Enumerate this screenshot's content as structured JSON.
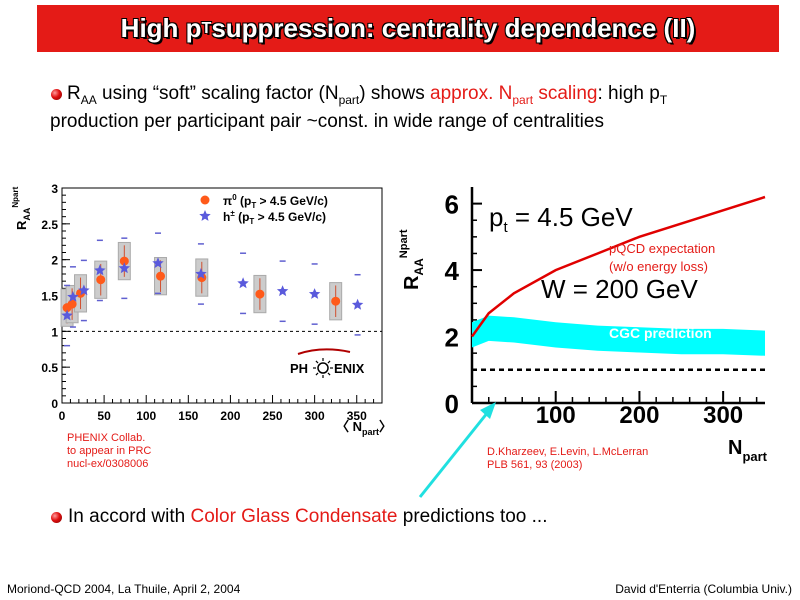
{
  "header": {
    "title_pre": "High p",
    "title_sub": "T",
    "title_post": " suppression: centrality dependence (II)"
  },
  "bullets": {
    "b1_r": "R",
    "b1_aa": "AA",
    "b1_a": " using “soft” scaling factor (N",
    "b1_part": "part",
    "b1_b": ") shows ",
    "b1_hl1": "approx. N",
    "b1_hl_part": "part",
    "b1_hl2": " scaling",
    "b1_c": ": high p",
    "b1_t": "T",
    "b1_line2": "production per participant pair ~const. in wide range of centralities",
    "b2_a": "In accord with ",
    "b2_hl": "Color Glass Condensate",
    "b2_b": " predictions too ..."
  },
  "left_notes": [
    "PHENIX Collab.",
    "to appear in PRC",
    "nucl-ex/0308006"
  ],
  "right_notes": [
    "D.Kharzeev, E.Levin, L.McLerran",
    "PLB 561, 93 (2003)"
  ],
  "logo": {
    "text_left": "PH",
    "text_right": "ENIX",
    "icon": "sun-icon"
  },
  "footer": {
    "left": "Moriond-QCD 2004, La Thuile, April 2, 2004",
    "right": "David d'Enterria (Columbia Univ.)"
  },
  "colors": {
    "title_bg": "#e41b17",
    "highlight": "#e41b17",
    "pi0": "#ff5a1a",
    "hpm": "#5a5adc",
    "cgc_band": "#00ffff",
    "pqcd": "#e00000",
    "arrow": "#20e0e0"
  },
  "chart_data": [
    {
      "type": "scatter",
      "ylabel_main": "R",
      "ylabel_sub": "AA",
      "ylabel_sup": "Npart",
      "xlabel_main": "〈 N",
      "xlabel_sub": "part",
      "xlabel_end": "〉",
      "xlim": [
        0,
        380
      ],
      "ylim": [
        0,
        3
      ],
      "xticks": [
        0,
        50,
        100,
        150,
        200,
        250,
        300,
        350
      ],
      "yticks": [
        0,
        0.5,
        1,
        1.5,
        2,
        2.5,
        3
      ],
      "ytick_labels": [
        "0",
        "0.5",
        "1",
        "1.5",
        "2",
        "2.5",
        "3"
      ],
      "reference_line": 1,
      "legend": [
        {
          "sym": "π",
          "sup": "0",
          "text": " (p",
          "sub": "T",
          "end": " > 4.5 GeV/c)"
        },
        {
          "sym": "h",
          "sup": "±",
          "text": " (p",
          "sub": "T",
          "end": " > 4.5 GeV/c)"
        }
      ],
      "series": [
        {
          "name": "pi0",
          "x": [
            6,
            12,
            22,
            46,
            74,
            117,
            166,
            235,
            325
          ],
          "y": [
            1.33,
            1.38,
            1.53,
            1.72,
            1.98,
            1.77,
            1.75,
            1.52,
            1.42
          ]
        },
        {
          "name": "hpm",
          "x": [
            6,
            13,
            26,
            45,
            74,
            114,
            165,
            215,
            262,
            300,
            351
          ],
          "y": [
            1.22,
            1.48,
            1.57,
            1.85,
            1.88,
            1.95,
            1.8,
            1.67,
            1.56,
            1.52,
            1.37
          ]
        }
      ]
    },
    {
      "type": "line",
      "ylabel_main": "R",
      "ylabel_sub": "AA",
      "ylabel_sup": "Npart",
      "xlabel_main": "N",
      "xlabel_sub": "part",
      "xlim": [
        0,
        350
      ],
      "ylim": [
        0,
        6.5
      ],
      "xticks": [
        100,
        200,
        300
      ],
      "yticks": [
        0,
        2,
        4,
        6
      ],
      "annotation_pt": "p",
      "annotation_pt_sub": "t",
      "annotation_pt_val": " = 4.5 GeV",
      "annotation_w": "W = 200 GeV",
      "pqcd_label": [
        "pQCD expectation",
        "(w/o energy loss)"
      ],
      "cgc_label": "CGC prediction",
      "reference_line": 1,
      "series": [
        {
          "name": "pQCD expectation",
          "x": [
            0,
            20,
            50,
            100,
            150,
            200,
            250,
            300,
            350
          ],
          "y": [
            2.0,
            2.7,
            3.3,
            4.0,
            4.5,
            5.0,
            5.4,
            5.8,
            6.2
          ]
        },
        {
          "name": "CGC prediction",
          "x": [
            0,
            20,
            50,
            100,
            150,
            200,
            250,
            300,
            350
          ],
          "y": [
            2.05,
            2.25,
            2.2,
            2.05,
            1.95,
            1.9,
            1.85,
            1.85,
            1.8
          ]
        }
      ]
    }
  ]
}
